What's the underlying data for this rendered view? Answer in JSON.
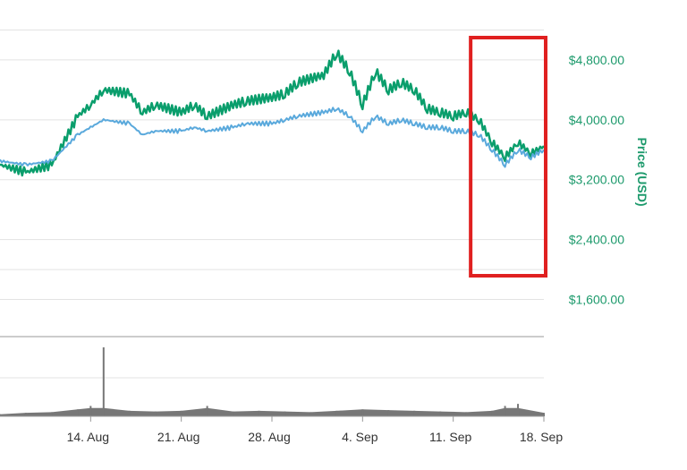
{
  "chart_data": {
    "type": "line",
    "title": "",
    "ylabel": "Price (USD)",
    "y_axis_side": "right",
    "ylim": [
      1200,
      5600
    ],
    "yticks": [
      1600,
      2400,
      3200,
      4000,
      4800
    ],
    "ytick_labels": [
      "$1,600.00",
      "$2,400.00",
      "$3,200.00",
      "$4,000.00",
      "$4,800.00"
    ],
    "xlim": [
      "2017-08-07",
      "2017-09-18"
    ],
    "xticks": [
      "2017-08-14",
      "2017-08-21",
      "2017-08-28",
      "2017-09-04",
      "2017-09-11",
      "2017-09-18"
    ],
    "xtick_labels": [
      "14. Aug",
      "21. Aug",
      "28. Aug",
      "4. Sep",
      "11. Sep",
      "18. Sep"
    ],
    "grid": true,
    "series": [
      {
        "color": "#0a9e6c",
        "x": [
          "2017-08-07",
          "2017-08-09",
          "2017-08-11",
          "2017-08-13",
          "2017-08-14",
          "2017-08-15",
          "2017-08-17",
          "2017-08-18",
          "2017-08-19",
          "2017-08-21",
          "2017-08-22",
          "2017-08-23",
          "2017-08-25",
          "2017-08-26",
          "2017-08-28",
          "2017-08-29",
          "2017-08-30",
          "2017-09-01",
          "2017-09-02",
          "2017-09-03",
          "2017-09-04",
          "2017-09-05",
          "2017-09-06",
          "2017-09-07",
          "2017-09-08",
          "2017-09-09",
          "2017-09-10",
          "2017-09-11",
          "2017-09-12",
          "2017-09-13",
          "2017-09-14",
          "2017-09-15",
          "2017-09-16",
          "2017-09-17",
          "2017-09-18"
        ],
        "values": [
          3400,
          3300,
          3400,
          4050,
          4200,
          4400,
          4350,
          4100,
          4200,
          4100,
          4200,
          4050,
          4200,
          4250,
          4300,
          4350,
          4500,
          4600,
          4900,
          4650,
          4200,
          4650,
          4400,
          4500,
          4400,
          4150,
          4100,
          4050,
          4100,
          4000,
          3700,
          3500,
          3700,
          3550,
          3650
        ]
      },
      {
        "color": "#5aa9dc",
        "x": [
          "2017-08-07",
          "2017-08-09",
          "2017-08-11",
          "2017-08-13",
          "2017-08-14",
          "2017-08-15",
          "2017-08-17",
          "2017-08-18",
          "2017-08-19",
          "2017-08-21",
          "2017-08-22",
          "2017-08-23",
          "2017-08-25",
          "2017-08-26",
          "2017-08-28",
          "2017-08-29",
          "2017-08-30",
          "2017-09-01",
          "2017-09-02",
          "2017-09-03",
          "2017-09-04",
          "2017-09-05",
          "2017-09-06",
          "2017-09-07",
          "2017-09-08",
          "2017-09-09",
          "2017-09-10",
          "2017-09-11",
          "2017-09-12",
          "2017-09-13",
          "2017-09-14",
          "2017-09-15",
          "2017-09-16",
          "2017-09-17",
          "2017-09-18"
        ],
        "values": [
          3450,
          3400,
          3450,
          3800,
          3900,
          4000,
          3950,
          3800,
          3850,
          3850,
          3900,
          3850,
          3900,
          3950,
          3950,
          4000,
          4050,
          4100,
          4150,
          4050,
          3850,
          4050,
          3950,
          4000,
          3950,
          3900,
          3900,
          3850,
          3850,
          3800,
          3600,
          3400,
          3600,
          3500,
          3600
        ]
      }
    ],
    "volume": {
      "color": "#777777",
      "x": [
        "2017-08-07",
        "2017-08-09",
        "2017-08-11",
        "2017-08-13",
        "2017-08-14",
        "2017-08-15",
        "2017-08-17",
        "2017-08-19",
        "2017-08-21",
        "2017-08-23",
        "2017-08-25",
        "2017-08-27",
        "2017-08-29",
        "2017-08-31",
        "2017-09-02",
        "2017-09-04",
        "2017-09-06",
        "2017-09-08",
        "2017-09-10",
        "2017-09-12",
        "2017-09-14",
        "2017-09-15",
        "2017-09-16",
        "2017-09-18"
      ],
      "values": [
        0.03,
        0.05,
        0.06,
        0.1,
        0.15,
        1.0,
        0.08,
        0.07,
        0.08,
        0.15,
        0.07,
        0.08,
        0.07,
        0.06,
        0.08,
        0.1,
        0.09,
        0.08,
        0.07,
        0.06,
        0.08,
        0.15,
        0.18,
        0.05
      ]
    },
    "highlight": {
      "color": "#e02020",
      "x_range": [
        "2017-09-12",
        "2017-09-18"
      ],
      "y_range": [
        2300,
        5200
      ]
    }
  }
}
